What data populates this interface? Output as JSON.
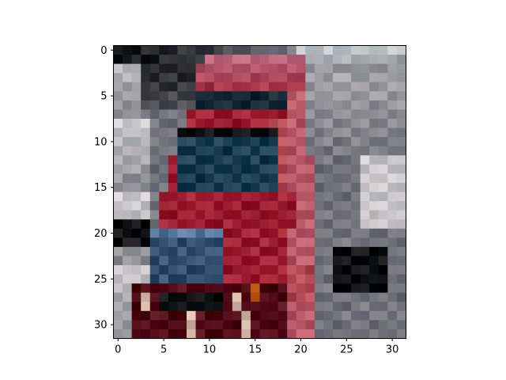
{
  "image": {
    "grid_rows": 32,
    "grid_cols": 32,
    "subject": "blurry pixelated photo of a red truck cab with a dark windshield, front headlights and grille",
    "palette": {
      "sky": "#c9cfd2",
      "truck_red": "#a8283a",
      "truck_red_light": "#c0565f",
      "truck_dark": "#5c1420",
      "windshield": "#24475a",
      "grille": "#3f5a78",
      "roof_pink": "#c97a8e",
      "road_gray": "#7f7e86",
      "shadow": "#1a1a1c",
      "light_wall": "#d8d4d6",
      "headlight": "#e0c2b0",
      "orange_light": "#c8621c"
    }
  },
  "axes": {
    "x_ticks": [
      "0",
      "5",
      "10",
      "15",
      "20",
      "25",
      "30"
    ],
    "y_ticks": [
      "0",
      "5",
      "10",
      "15",
      "20",
      "25",
      "30"
    ],
    "xlim": [
      -0.5,
      31.5
    ],
    "ylim": [
      31.5,
      -0.5
    ]
  }
}
